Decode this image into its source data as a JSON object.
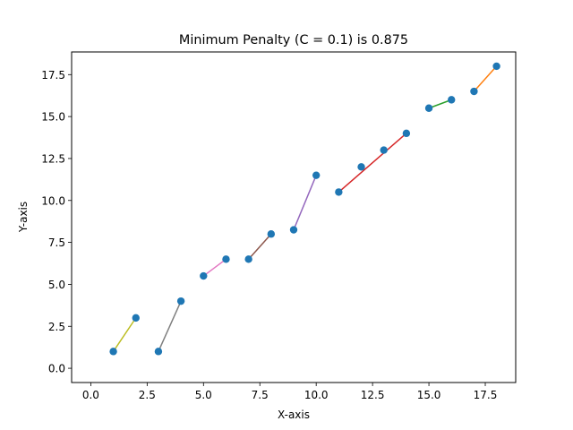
{
  "chart_data": {
    "type": "scatter",
    "title": "Minimum Penalty (C = 0.1) is 0.875",
    "xlabel": "X-axis",
    "ylabel": "Y-axis",
    "xlim": [
      -0.85,
      18.85
    ],
    "ylim": [
      -0.85,
      18.85
    ],
    "xticks": [
      0.0,
      2.5,
      5.0,
      7.5,
      10.0,
      12.5,
      15.0,
      17.5
    ],
    "xtick_labels": [
      "0.0",
      "2.5",
      "5.0",
      "7.5",
      "10.0",
      "12.5",
      "15.0",
      "17.5"
    ],
    "yticks": [
      0.0,
      2.5,
      5.0,
      7.5,
      10.0,
      12.5,
      15.0,
      17.5
    ],
    "ytick_labels": [
      "0.0",
      "2.5",
      "5.0",
      "7.5",
      "10.0",
      "12.5",
      "15.0",
      "17.5"
    ],
    "grid": false,
    "point_color": "#1f77b4",
    "points": [
      {
        "x": 1,
        "y": 1.0
      },
      {
        "x": 2,
        "y": 3.0
      },
      {
        "x": 3,
        "y": 1.0
      },
      {
        "x": 4,
        "y": 4.0
      },
      {
        "x": 5,
        "y": 5.5
      },
      {
        "x": 6,
        "y": 6.5
      },
      {
        "x": 7,
        "y": 6.5
      },
      {
        "x": 8,
        "y": 8.0
      },
      {
        "x": 9,
        "y": 8.25
      },
      {
        "x": 10,
        "y": 11.5
      },
      {
        "x": 11,
        "y": 10.5
      },
      {
        "x": 12,
        "y": 12.0
      },
      {
        "x": 13,
        "y": 13.0
      },
      {
        "x": 14,
        "y": 14.0
      },
      {
        "x": 15,
        "y": 15.5
      },
      {
        "x": 16,
        "y": 16.0
      },
      {
        "x": 17,
        "y": 16.5
      },
      {
        "x": 18,
        "y": 18.0
      }
    ],
    "segments": [
      {
        "x": [
          1,
          2
        ],
        "y": [
          1.0,
          3.0
        ],
        "color": "#bcbd22"
      },
      {
        "x": [
          3,
          4
        ],
        "y": [
          1.0,
          4.0
        ],
        "color": "#7f7f7f"
      },
      {
        "x": [
          5,
          6
        ],
        "y": [
          5.5,
          6.5
        ],
        "color": "#e377c2"
      },
      {
        "x": [
          7,
          8
        ],
        "y": [
          6.5,
          8.0
        ],
        "color": "#8c564b"
      },
      {
        "x": [
          9,
          10
        ],
        "y": [
          8.25,
          11.5
        ],
        "color": "#9467bd"
      },
      {
        "x": [
          11,
          14
        ],
        "y": [
          10.5,
          14.0
        ],
        "color": "#d62728"
      },
      {
        "x": [
          15,
          16
        ],
        "y": [
          15.5,
          16.0
        ],
        "color": "#2ca02c"
      },
      {
        "x": [
          17,
          18
        ],
        "y": [
          16.5,
          18.0
        ],
        "color": "#ff7f0e"
      }
    ]
  }
}
